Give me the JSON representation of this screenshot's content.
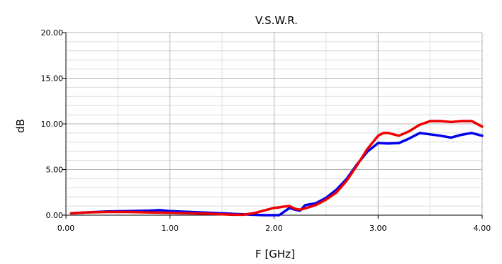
{
  "chart_data": {
    "type": "line",
    "title": "V.S.W.R.",
    "xlabel": "F [GHz]",
    "ylabel": "dB",
    "xlim": [
      0,
      4
    ],
    "ylim": [
      0,
      20
    ],
    "xticks": [
      0,
      1,
      2,
      3,
      4
    ],
    "xtick_labels": [
      "0.00",
      "1.00",
      "2.00",
      "3.00",
      "4.00"
    ],
    "yticks": [
      0,
      5,
      10,
      15,
      20
    ],
    "ytick_labels": [
      "0.00",
      "5.00",
      "10.00",
      "15.00",
      "20.00"
    ],
    "grid": true,
    "series": [
      {
        "color": "#0000ee",
        "x": [
          0.05,
          0.2,
          0.4,
          0.6,
          0.8,
          0.9,
          1.0,
          1.2,
          1.4,
          1.5,
          1.6,
          1.7,
          1.8,
          1.9,
          2.0,
          2.05,
          2.1,
          2.15,
          2.2,
          2.25,
          2.3,
          2.35,
          2.4,
          2.5,
          2.6,
          2.7,
          2.8,
          2.9,
          3.0,
          3.1,
          3.2,
          3.3,
          3.4,
          3.5,
          3.6,
          3.7,
          3.8,
          3.9,
          4.0
        ],
        "y": [
          0.2,
          0.3,
          0.4,
          0.45,
          0.5,
          0.55,
          0.45,
          0.35,
          0.25,
          0.2,
          0.15,
          0.1,
          0.05,
          0.0,
          0.0,
          0.0,
          0.4,
          0.8,
          0.6,
          0.5,
          1.1,
          1.2,
          1.3,
          1.9,
          2.8,
          4.0,
          5.6,
          7.0,
          7.9,
          7.85,
          7.9,
          8.4,
          9.0,
          8.85,
          8.7,
          8.5,
          8.8,
          9.0,
          8.7
        ]
      },
      {
        "color": "#ee0000",
        "x": [
          0.05,
          0.2,
          0.4,
          0.6,
          0.8,
          1.0,
          1.2,
          1.4,
          1.6,
          1.7,
          1.8,
          1.9,
          2.0,
          2.05,
          2.1,
          2.15,
          2.2,
          2.25,
          2.3,
          2.4,
          2.5,
          2.6,
          2.7,
          2.8,
          2.9,
          3.0,
          3.05,
          3.1,
          3.2,
          3.3,
          3.4,
          3.5,
          3.6,
          3.7,
          3.8,
          3.9,
          4.0
        ],
        "y": [
          0.2,
          0.3,
          0.35,
          0.35,
          0.3,
          0.25,
          0.2,
          0.15,
          0.05,
          0.05,
          0.2,
          0.5,
          0.8,
          0.85,
          0.95,
          1.0,
          0.7,
          0.6,
          0.75,
          1.1,
          1.7,
          2.5,
          3.8,
          5.5,
          7.3,
          8.7,
          9.0,
          9.0,
          8.7,
          9.2,
          9.9,
          10.3,
          10.3,
          10.2,
          10.3,
          10.3,
          9.7
        ]
      }
    ]
  }
}
